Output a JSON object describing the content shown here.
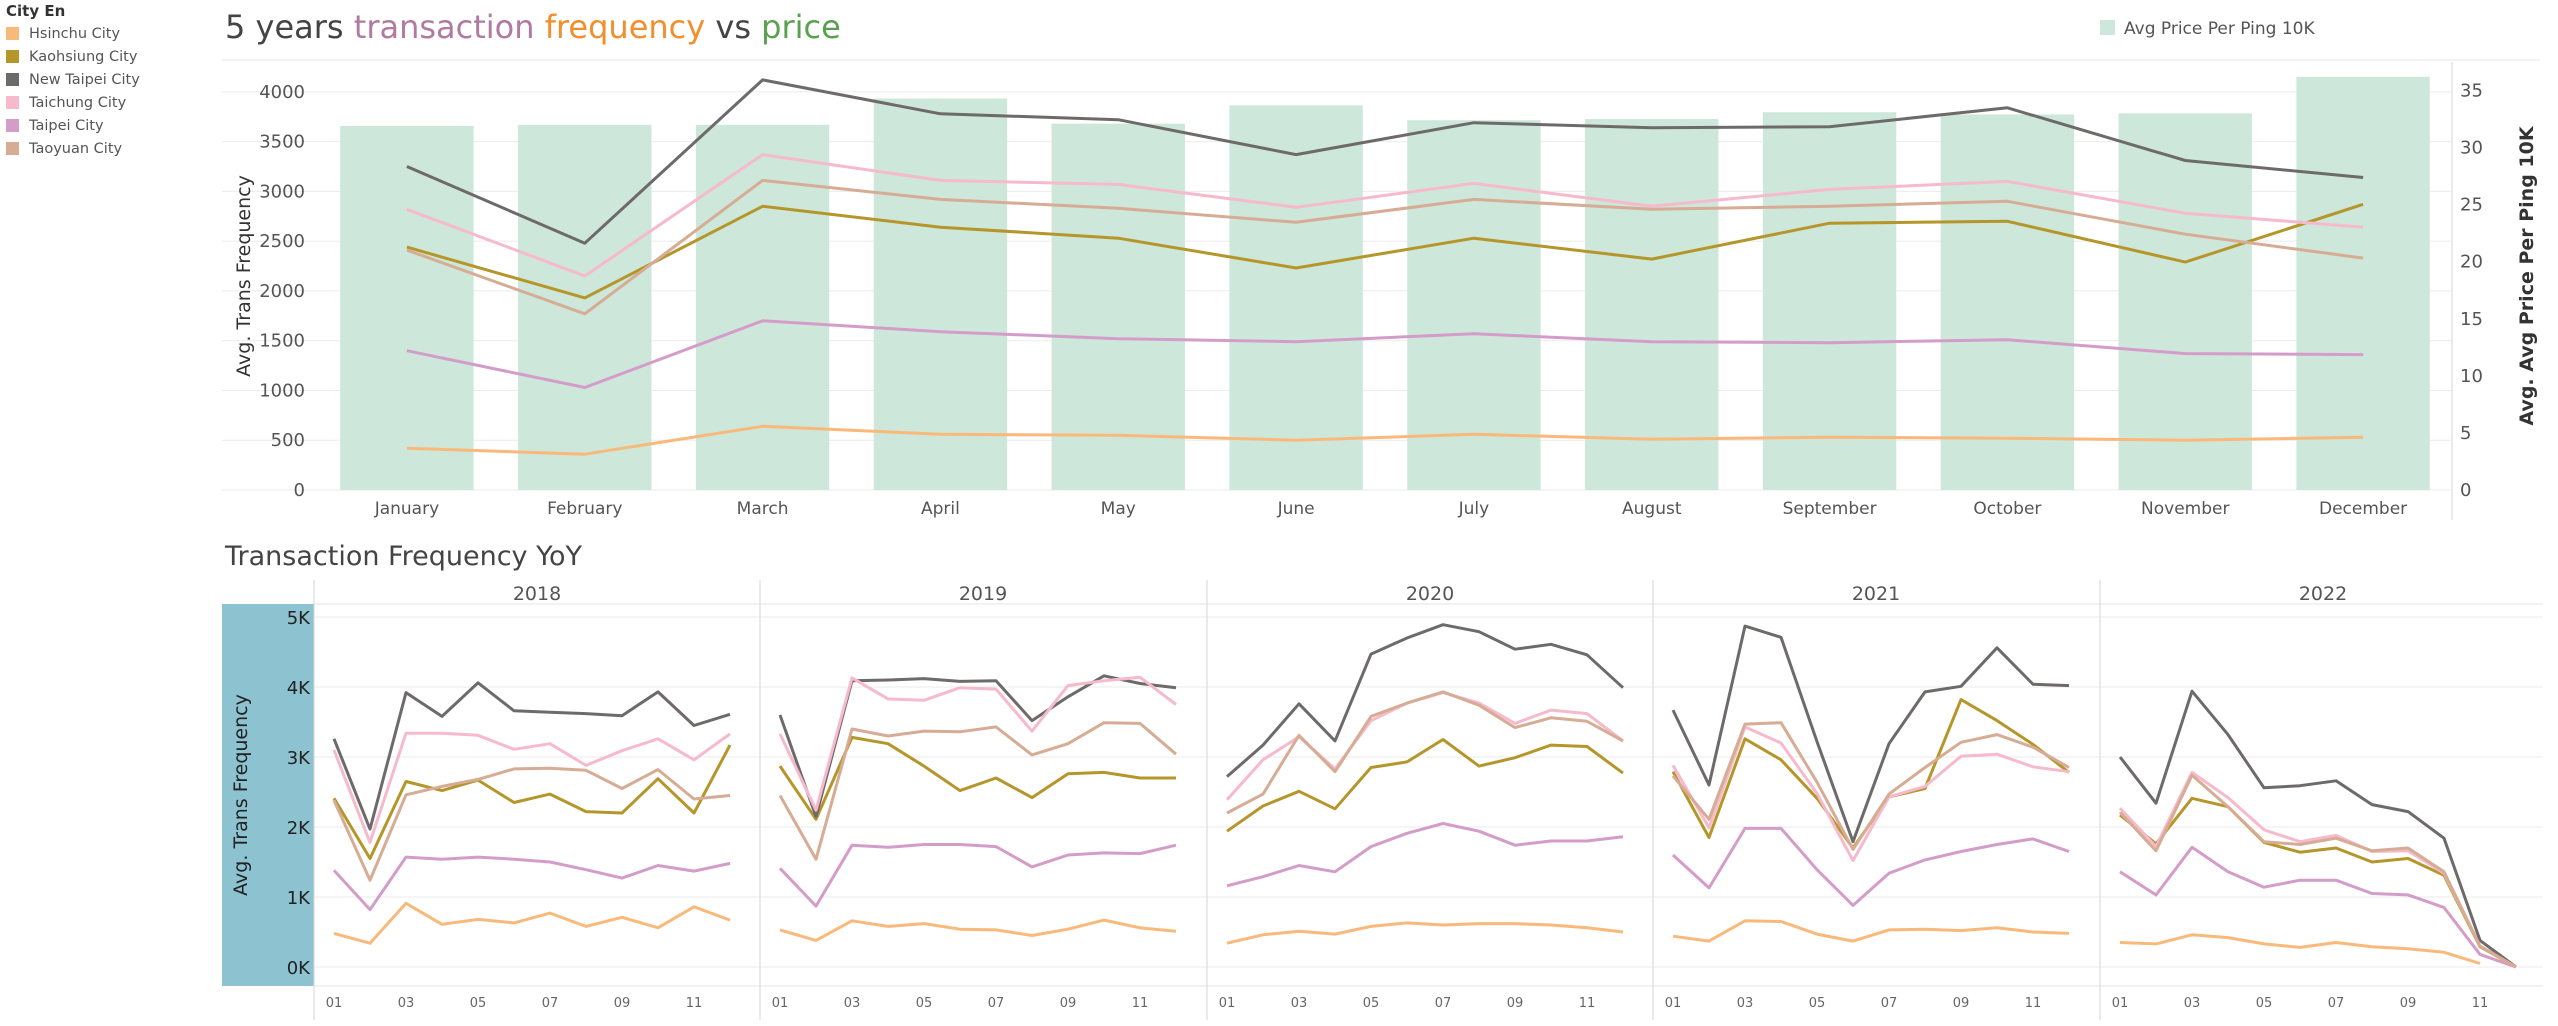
{
  "legend": {
    "title": "City En",
    "items": [
      {
        "label": "Hsinchu City",
        "color": "#F9B97A"
      },
      {
        "label": "Kaohsiung City",
        "color": "#B5962A"
      },
      {
        "label": "New Taipei City",
        "color": "#6E6A6A"
      },
      {
        "label": "Taichung City",
        "color": "#F7B9CC"
      },
      {
        "label": "Taipei City",
        "color": "#D49CC8"
      },
      {
        "label": "Taoyuan City",
        "color": "#D6AC94"
      }
    ]
  },
  "colors": {
    "bar": "#CDE7DB",
    "yoy_axis_band": "#8DC3D1",
    "title_transaction": "#B07AA1",
    "title_frequency": "#F28E2B",
    "title_price": "#59A14F",
    "grid": "#EBEBEB"
  },
  "chart_data": [
    {
      "type": "bar+line",
      "title": "5 years transaction frequency vs price",
      "title_parts": [
        "5 years ",
        "transaction",
        " ",
        "frequency",
        " vs ",
        "price"
      ],
      "bar_legend_label": "Avg Price Per Ping 10K",
      "legend_position": "top-right",
      "ylabel_left": "Avg. Trans Frequency",
      "ylabel_right": "Avg. Avg Price Per Ping 10K",
      "ylim_left": [
        0,
        4300
      ],
      "ylim_right": [
        0,
        37.5
      ],
      "yticks_left": [
        "0",
        "500",
        "1000",
        "1500",
        "2000",
        "2500",
        "3000",
        "3500",
        "4000"
      ],
      "yticks_right": [
        "0",
        "5",
        "10",
        "15",
        "20",
        "25",
        "30",
        "35"
      ],
      "grid": true,
      "categories": [
        "January",
        "February",
        "March",
        "April",
        "May",
        "June",
        "July",
        "August",
        "September",
        "October",
        "November",
        "December"
      ],
      "bars": {
        "name": "Avg Price Per Ping 10K",
        "values": [
          31.9,
          32.0,
          32.0,
          34.3,
          32.1,
          33.7,
          32.4,
          32.5,
          33.1,
          32.9,
          33.0,
          36.2
        ]
      },
      "series": [
        {
          "name": "Hsinchu City",
          "values": [
            420,
            360,
            640,
            560,
            550,
            500,
            560,
            510,
            530,
            520,
            500,
            530
          ]
        },
        {
          "name": "Kaohsiung City",
          "values": [
            2440,
            1930,
            2850,
            2640,
            2530,
            2230,
            2530,
            2320,
            2680,
            2700,
            2290,
            2870
          ]
        },
        {
          "name": "New Taipei City",
          "values": [
            3250,
            2480,
            4120,
            3780,
            3720,
            3370,
            3690,
            3640,
            3650,
            3840,
            3310,
            3140
          ]
        },
        {
          "name": "Taichung City",
          "values": [
            2820,
            2150,
            3370,
            3110,
            3070,
            2840,
            3080,
            2850,
            3020,
            3100,
            2780,
            2640
          ]
        },
        {
          "name": "Taipei City",
          "values": [
            1400,
            1030,
            1700,
            1590,
            1520,
            1490,
            1570,
            1490,
            1480,
            1510,
            1370,
            1360
          ]
        },
        {
          "name": "Taoyuan City",
          "values": [
            2410,
            1770,
            3110,
            2920,
            2830,
            2690,
            2920,
            2820,
            2850,
            2900,
            2570,
            2330
          ]
        }
      ]
    },
    {
      "type": "line",
      "title": "Transaction Frequency YoY",
      "ylabel": "Avg. Trans Frequency",
      "ylim": [
        0,
        5000
      ],
      "yticks": [
        "0K",
        "1K",
        "2K",
        "3K",
        "4K",
        "5K"
      ],
      "xticks": [
        "01",
        "03",
        "05",
        "07",
        "09",
        "11"
      ],
      "grid": true,
      "panels": [
        {
          "year": "2018",
          "series": [
            {
              "name": "Hsinchu City",
              "values": [
                480,
                340,
                910,
                610,
                680,
                630,
                770,
                580,
                710,
                560,
                860,
                670
              ]
            },
            {
              "name": "Kaohsiung City",
              "values": [
                2410,
                1550,
                2650,
                2520,
                2670,
                2350,
                2470,
                2220,
                2200,
                2690,
                2200,
                3170
              ]
            },
            {
              "name": "New Taipei City",
              "values": [
                3260,
                1970,
                3920,
                3580,
                4060,
                3660,
                3640,
                3620,
                3590,
                3930,
                3450,
                3610
              ]
            },
            {
              "name": "Taichung City",
              "values": [
                3100,
                1780,
                3340,
                3340,
                3310,
                3110,
                3190,
                2880,
                3090,
                3260,
                2960,
                3330
              ]
            },
            {
              "name": "Taipei City",
              "values": [
                1380,
                820,
                1570,
                1540,
                1570,
                1540,
                1500,
                1390,
                1270,
                1450,
                1370,
                1480
              ]
            },
            {
              "name": "Taoyuan City",
              "values": [
                2380,
                1240,
                2460,
                2580,
                2680,
                2830,
                2840,
                2810,
                2550,
                2820,
                2400,
                2450
              ]
            }
          ]
        },
        {
          "year": "2019",
          "series": [
            {
              "name": "Hsinchu City",
              "values": [
                530,
                380,
                660,
                580,
                620,
                540,
                530,
                450,
                540,
                670,
                560,
                510
              ]
            },
            {
              "name": "Kaohsiung City",
              "values": [
                2870,
                2110,
                3280,
                3190,
                2870,
                2520,
                2700,
                2420,
                2760,
                2780,
                2700,
                2700
              ]
            },
            {
              "name": "New Taipei City",
              "values": [
                3600,
                2150,
                4090,
                4100,
                4120,
                4080,
                4090,
                3520,
                3860,
                4160,
                4050,
                3990
              ]
            },
            {
              "name": "Taichung City",
              "values": [
                3330,
                2240,
                4130,
                3830,
                3810,
                3990,
                3970,
                3370,
                4020,
                4090,
                4140,
                3750
              ]
            },
            {
              "name": "Taipei City",
              "values": [
                1410,
                870,
                1740,
                1710,
                1750,
                1750,
                1720,
                1430,
                1600,
                1630,
                1620,
                1740
              ]
            },
            {
              "name": "Taoyuan City",
              "values": [
                2450,
                1540,
                3400,
                3300,
                3370,
                3360,
                3430,
                3030,
                3190,
                3490,
                3480,
                3040
              ]
            }
          ]
        },
        {
          "year": "2020",
          "series": [
            {
              "name": "Hsinchu City",
              "values": [
                340,
                460,
                510,
                470,
                580,
                630,
                600,
                620,
                620,
                600,
                560,
                500
              ]
            },
            {
              "name": "Kaohsiung City",
              "values": [
                1940,
                2300,
                2510,
                2260,
                2850,
                2930,
                3250,
                2870,
                2990,
                3170,
                3150,
                2770
              ]
            },
            {
              "name": "New Taipei City",
              "values": [
                2720,
                3170,
                3760,
                3230,
                4470,
                4700,
                4890,
                4790,
                4540,
                4610,
                4460,
                3990
              ]
            },
            {
              "name": "Taichung City",
              "values": [
                2390,
                2960,
                3290,
                2830,
                3520,
                3770,
                3920,
                3770,
                3480,
                3670,
                3620,
                3230
              ]
            },
            {
              "name": "Taipei City",
              "values": [
                1160,
                1290,
                1450,
                1360,
                1720,
                1910,
                2050,
                1940,
                1740,
                1800,
                1800,
                1860
              ]
            },
            {
              "name": "Taoyuan City",
              "values": [
                2200,
                2470,
                3310,
                2790,
                3580,
                3770,
                3930,
                3740,
                3420,
                3560,
                3510,
                3230
              ]
            }
          ]
        },
        {
          "year": "2021",
          "series": [
            {
              "name": "Hsinchu City",
              "values": [
                440,
                370,
                660,
                650,
                470,
                370,
                530,
                540,
                520,
                560,
                500,
                480
              ]
            },
            {
              "name": "Kaohsiung City",
              "values": [
                2790,
                1850,
                3260,
                2960,
                2410,
                1700,
                2430,
                2550,
                3820,
                3520,
                3180,
                2780
              ]
            },
            {
              "name": "New Taipei City",
              "values": [
                3670,
                2600,
                4870,
                4710,
                3220,
                1790,
                3190,
                3930,
                4010,
                4560,
                4040,
                4020
              ]
            },
            {
              "name": "Taichung City",
              "values": [
                2880,
                1990,
                3430,
                3200,
                2480,
                1520,
                2430,
                2580,
                3010,
                3040,
                2860,
                2790
              ]
            },
            {
              "name": "Taipei City",
              "values": [
                1600,
                1130,
                1980,
                1980,
                1390,
                880,
                1340,
                1530,
                1650,
                1750,
                1830,
                1650
              ]
            },
            {
              "name": "Taoyuan City",
              "values": [
                2730,
                2110,
                3470,
                3490,
                2640,
                1680,
                2470,
                2850,
                3210,
                3320,
                3140,
                2850
              ]
            }
          ]
        },
        {
          "year": "2022",
          "series": [
            {
              "name": "Hsinchu City",
              "values": [
                350,
                330,
                460,
                420,
                330,
                280,
                350,
                290,
                260,
                210,
                50,
                null
              ]
            },
            {
              "name": "Kaohsiung City",
              "values": [
                2170,
                1760,
                2410,
                2290,
                1780,
                1640,
                1700,
                1500,
                1550,
                1310,
                290,
                0
              ]
            },
            {
              "name": "New Taipei City",
              "values": [
                3000,
                2340,
                3940,
                3320,
                2560,
                2590,
                2660,
                2320,
                2220,
                1840,
                380,
                0
              ]
            },
            {
              "name": "Taichung City",
              "values": [
                2270,
                1720,
                2780,
                2420,
                1960,
                1790,
                1880,
                1650,
                1660,
                1340,
                300,
                0
              ]
            },
            {
              "name": "Taipei City",
              "values": [
                1360,
                1030,
                1710,
                1360,
                1140,
                1240,
                1240,
                1050,
                1030,
                850,
                180,
                0
              ]
            },
            {
              "name": "Taoyuan City",
              "values": [
                2210,
                1660,
                2740,
                2290,
                1790,
                1750,
                1840,
                1660,
                1700,
                1360,
                300,
                0
              ]
            }
          ]
        }
      ]
    }
  ]
}
